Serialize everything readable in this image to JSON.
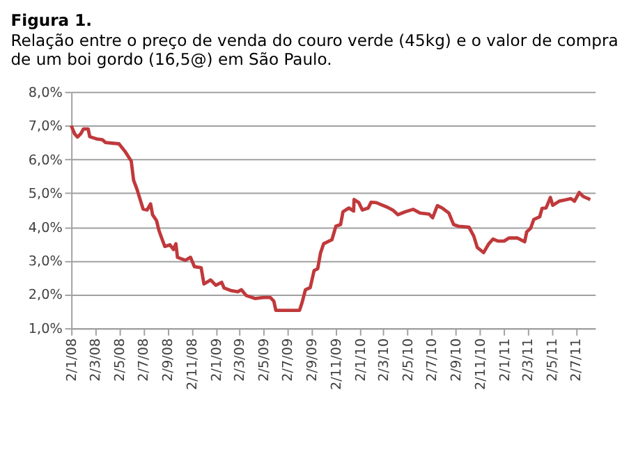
{
  "chart_data": {
    "type": "line",
    "title": "Figura 1.",
    "subtitle": "Relação entre o preço de venda do couro verde (45kg) e o valor de compra de um boi gordo (16,5@) em São Paulo.",
    "x": [
      "2008-01-02",
      "2008-01-11",
      "2008-01-18",
      "2008-01-27",
      "2008-02-02",
      "2008-02-14",
      "2008-02-18",
      "2008-03-08",
      "2008-03-21",
      "2008-03-29",
      "2008-05-02",
      "2008-05-17",
      "2008-06-02",
      "2008-06-08",
      "2008-06-17",
      "2008-06-23",
      "2008-07-02",
      "2008-07-12",
      "2008-07-21",
      "2008-07-26",
      "2008-08-05",
      "2008-08-11",
      "2008-08-18",
      "2008-08-26",
      "2008-09-08",
      "2008-09-17",
      "2008-09-23",
      "2008-09-27",
      "2008-10-17",
      "2008-10-30",
      "2008-11-09",
      "2008-11-26",
      "2008-12-03",
      "2008-12-20",
      "2009-01-02",
      "2009-01-17",
      "2009-01-23",
      "2009-02-11",
      "2009-02-27",
      "2009-03-08",
      "2009-03-20",
      "2009-04-11",
      "2009-05-03",
      "2009-05-20",
      "2009-05-29",
      "2009-06-03",
      "2009-08-02",
      "2009-08-08",
      "2009-08-17",
      "2009-08-29",
      "2009-09-08",
      "2009-09-17",
      "2009-09-24",
      "2009-10-02",
      "2009-10-23",
      "2009-11-02",
      "2009-11-14",
      "2009-11-20",
      "2009-12-05",
      "2009-12-17",
      "2009-12-18",
      "2009-12-30",
      "2010-01-08",
      "2010-01-23",
      "2010-01-30",
      "2010-02-12",
      "2010-03-11",
      "2010-03-26",
      "2010-04-08",
      "2010-04-27",
      "2010-05-17",
      "2010-06-03",
      "2010-06-26",
      "2010-07-05",
      "2010-07-17",
      "2010-07-29",
      "2010-08-15",
      "2010-08-27",
      "2010-09-08",
      "2010-10-05",
      "2010-10-17",
      "2010-10-26",
      "2010-11-11",
      "2010-11-24",
      "2010-12-05",
      "2010-12-17",
      "2011-01-02",
      "2011-01-14",
      "2011-02-05",
      "2011-02-23",
      "2011-02-28",
      "2011-03-10",
      "2011-03-18",
      "2011-04-02",
      "2011-04-08",
      "2011-04-18",
      "2011-04-29",
      "2011-05-05",
      "2011-05-21",
      "2011-06-02",
      "2011-06-20",
      "2011-06-29",
      "2011-07-11",
      "2011-07-21",
      "2011-08-08"
    ],
    "series": [
      {
        "color": "#c0393b",
        "values": [
          7.0,
          6.75,
          6.66,
          6.77,
          6.9,
          6.9,
          6.67,
          6.6,
          6.58,
          6.5,
          6.46,
          6.24,
          5.95,
          5.38,
          5.1,
          4.87,
          4.53,
          4.5,
          4.68,
          4.36,
          4.19,
          3.9,
          3.67,
          3.42,
          3.47,
          3.33,
          3.5,
          3.1,
          3.01,
          3.1,
          2.82,
          2.79,
          2.31,
          2.43,
          2.27,
          2.36,
          2.19,
          2.11,
          2.08,
          2.14,
          1.97,
          1.88,
          1.91,
          1.91,
          1.8,
          1.53,
          1.53,
          1.74,
          2.14,
          2.2,
          2.71,
          2.76,
          3.22,
          3.5,
          3.62,
          4.02,
          4.07,
          4.45,
          4.56,
          4.47,
          4.81,
          4.72,
          4.5,
          4.56,
          4.73,
          4.72,
          4.59,
          4.5,
          4.36,
          4.45,
          4.52,
          4.41,
          4.38,
          4.27,
          4.63,
          4.56,
          4.41,
          4.07,
          4.02,
          3.99,
          3.73,
          3.39,
          3.24,
          3.5,
          3.64,
          3.58,
          3.58,
          3.67,
          3.67,
          3.56,
          3.85,
          3.96,
          4.22,
          4.3,
          4.55,
          4.56,
          4.87,
          4.64,
          4.76,
          4.79,
          4.84,
          4.76,
          5.02,
          4.9,
          4.81
        ]
      }
    ],
    "xlim": [
      "2008-01-02",
      "2011-08-20"
    ],
    "xticks": [
      {
        "value": "2008-01-02",
        "label": "2/1/08"
      },
      {
        "value": "2008-03-02",
        "label": "2/3/08"
      },
      {
        "value": "2008-05-02",
        "label": "2/5/08"
      },
      {
        "value": "2008-07-02",
        "label": "2/7/08"
      },
      {
        "value": "2008-09-02",
        "label": "2/9/08"
      },
      {
        "value": "2008-11-02",
        "label": "2/11/08"
      },
      {
        "value": "2009-01-02",
        "label": "2/1/09"
      },
      {
        "value": "2009-03-02",
        "label": "2/3/09"
      },
      {
        "value": "2009-05-02",
        "label": "2/5/09"
      },
      {
        "value": "2009-07-02",
        "label": "2/7/09"
      },
      {
        "value": "2009-09-02",
        "label": "2/9/09"
      },
      {
        "value": "2009-11-02",
        "label": "2/11/09"
      },
      {
        "value": "2010-01-02",
        "label": "2/1/10"
      },
      {
        "value": "2010-03-02",
        "label": "2/3/10"
      },
      {
        "value": "2010-05-02",
        "label": "2/5/10"
      },
      {
        "value": "2010-07-02",
        "label": "2/7/10"
      },
      {
        "value": "2010-09-02",
        "label": "2/9/10"
      },
      {
        "value": "2010-11-02",
        "label": "2/11/10"
      },
      {
        "value": "2011-01-02",
        "label": "2/1/11"
      },
      {
        "value": "2011-03-02",
        "label": "2/3/11"
      },
      {
        "value": "2011-05-02",
        "label": "2/5/11"
      },
      {
        "value": "2011-07-02",
        "label": "2/7/11"
      }
    ],
    "ylim": [
      1,
      8
    ],
    "yticks": [
      {
        "value": 1,
        "label": "1,0%"
      },
      {
        "value": 2,
        "label": "2,0%"
      },
      {
        "value": 3,
        "label": "3,0%"
      },
      {
        "value": 4,
        "label": "4,0%"
      },
      {
        "value": 5,
        "label": "5,0%"
      },
      {
        "value": 6,
        "label": "6,0%"
      },
      {
        "value": 7,
        "label": "7,0%"
      },
      {
        "value": 8,
        "label": "8,0%"
      }
    ],
    "grid": "y",
    "marker": "none",
    "line_style": "solid"
  }
}
